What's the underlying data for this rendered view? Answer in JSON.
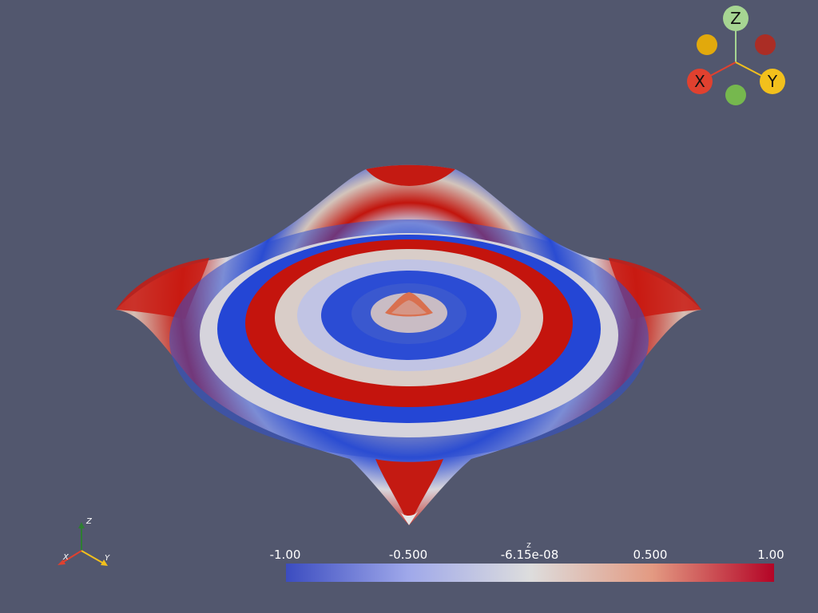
{
  "scene": {
    "background_color": "#52576e",
    "surface_colormap": [
      "#3b4cc0",
      "#dddddd",
      "#b40426"
    ],
    "surface_description": "3D surface with concentric sinusoidal rings colored by Z"
  },
  "orientation_widget": {
    "z_label": "Z",
    "x_label": "X",
    "y_label": "Y",
    "x_color": "#e0412f",
    "y_color": "#f2c01c",
    "z_color": "#a6d592",
    "neg_x_color": "#ab2d25",
    "neg_y_color": "#e2a90c",
    "neg_z_color": "#76b84e"
  },
  "small_axes": {
    "x_label": "X",
    "y_label": "Y",
    "z_label": "Z"
  },
  "scalar_bar": {
    "title": "Z",
    "min_label": "-1.00",
    "q1_label": "-0.500",
    "mid_label": "-6.15e-08",
    "q3_label": "0.500",
    "max_label": "1.00",
    "colors": [
      "#3b4cc0",
      "#dddddd",
      "#b40426"
    ]
  }
}
